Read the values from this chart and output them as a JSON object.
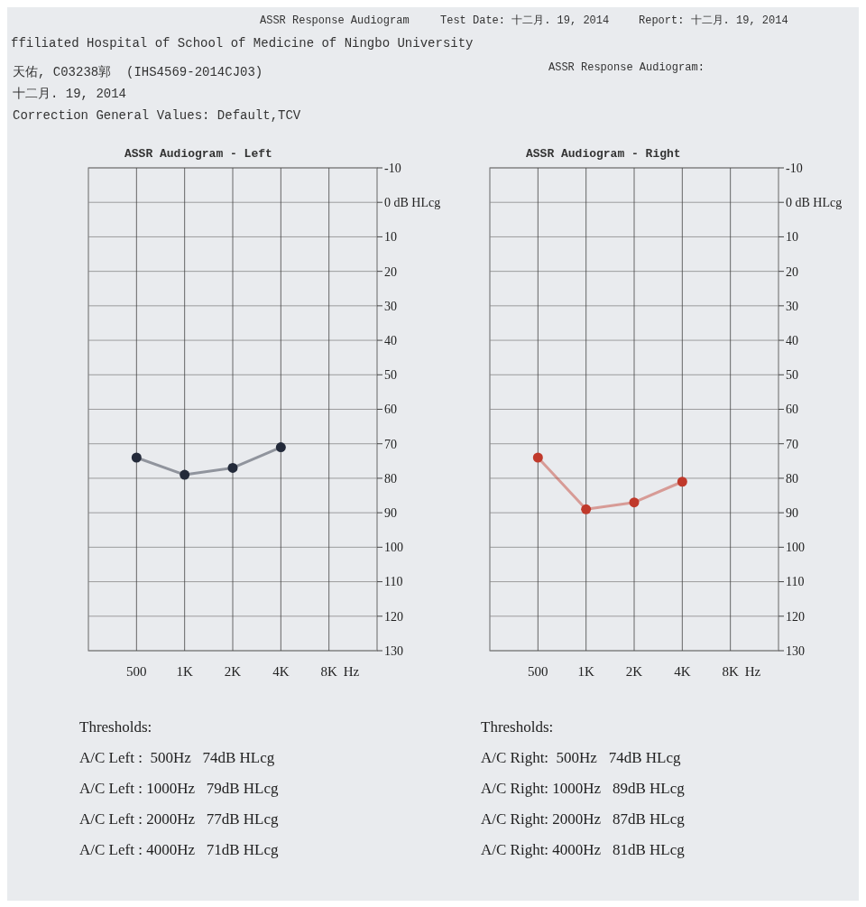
{
  "chart_data": [
    {
      "type": "other",
      "annotations": [
        "ASSR Response Audiogram",
        "Test Date: 十二月. 19, 2014",
        "Report: 十二月. 19, 2014",
        "ffiliated Hospital of School of Medicine of Ningbo University",
        "ASSR Response Audiogram:",
        "天佑, C03238郭  (IHS4569-2014CJ03)",
        "十二月. 19, 2014",
        "Correction General Values: Default,TCV"
      ]
    },
    {
      "type": "line",
      "title": "ASSR Audiogram - Left",
      "categories": [
        "500",
        "1K",
        "2K",
        "4K",
        "8K"
      ],
      "xlabel": "Hz",
      "ylim": [
        130,
        -10
      ],
      "yticks": [
        -10,
        {
          "value": 0,
          "label": "0 dB HLcg"
        },
        10,
        20,
        30,
        40,
        50,
        60,
        70,
        80,
        90,
        100,
        110,
        120,
        130
      ],
      "grid": true,
      "marker": "circle",
      "series": [
        {
          "color": "#232a3a",
          "values": [
            74,
            79,
            77,
            71,
            null
          ]
        }
      ],
      "annotations": [
        "Thresholds:",
        "A/C Left :  500Hz   74dB HLcg",
        "A/C Left : 1000Hz   79dB HLcg",
        "A/C Left : 2000Hz   77dB HLcg",
        "A/C Left : 4000Hz   71dB HLcg"
      ]
    },
    {
      "type": "line",
      "title": "ASSR Audiogram - Right",
      "categories": [
        "500",
        "1K",
        "2K",
        "4K",
        "8K"
      ],
      "xlabel": "Hz",
      "ylim": [
        130,
        -10
      ],
      "yticks": [
        -10,
        {
          "value": 0,
          "label": "0 dB HLcg"
        },
        10,
        20,
        30,
        40,
        50,
        60,
        70,
        80,
        90,
        100,
        110,
        120,
        130
      ],
      "grid": true,
      "marker": "circle",
      "series": [
        {
          "color": "#c0392b",
          "values": [
            74,
            89,
            87,
            81,
            null
          ]
        }
      ],
      "annotations": [
        "Thresholds:",
        "A/C Right:  500Hz   74dB HLcg",
        "A/C Right: 1000Hz   89dB HLcg",
        "A/C Right: 2000Hz   87dB HLcg",
        "A/C Right: 4000Hz   81dB HLcg"
      ]
    }
  ]
}
